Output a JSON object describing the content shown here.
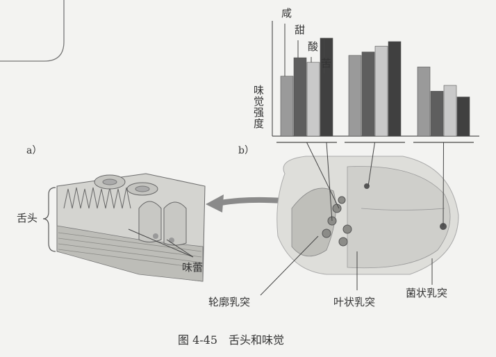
{
  "caption": "图 4-45　舌头和味觉",
  "panel_a": {
    "label": "a）",
    "tongue_label": "舌头",
    "taste_bud_label": "味蕾"
  },
  "panel_b": {
    "label": "b）",
    "y_axis_label": "味觉强度"
  },
  "tastes": [
    "咸",
    "甜",
    "酸",
    "苦"
  ],
  "papillae": [
    "轮廓乳突",
    "叶状乳突",
    "菌状乳突"
  ],
  "colors": {
    "salty": "#9a9a9a",
    "sweet": "#5e5e5e",
    "sour": "#c9c9c9",
    "bitter": "#404040"
  },
  "chart_data": {
    "type": "bar",
    "title": "",
    "xlabel": "",
    "ylabel": "味觉强度",
    "categories": [
      "轮廓乳突",
      "叶状乳突",
      "菌状乳突"
    ],
    "series": [
      {
        "name": "咸",
        "values": [
          52,
          70,
          60
        ]
      },
      {
        "name": "甜",
        "values": [
          68,
          73,
          39
        ]
      },
      {
        "name": "酸",
        "values": [
          64,
          78,
          44
        ]
      },
      {
        "name": "苦",
        "values": [
          85,
          82,
          34
        ]
      }
    ],
    "ylim": [
      0,
      100
    ],
    "grid": false
  }
}
